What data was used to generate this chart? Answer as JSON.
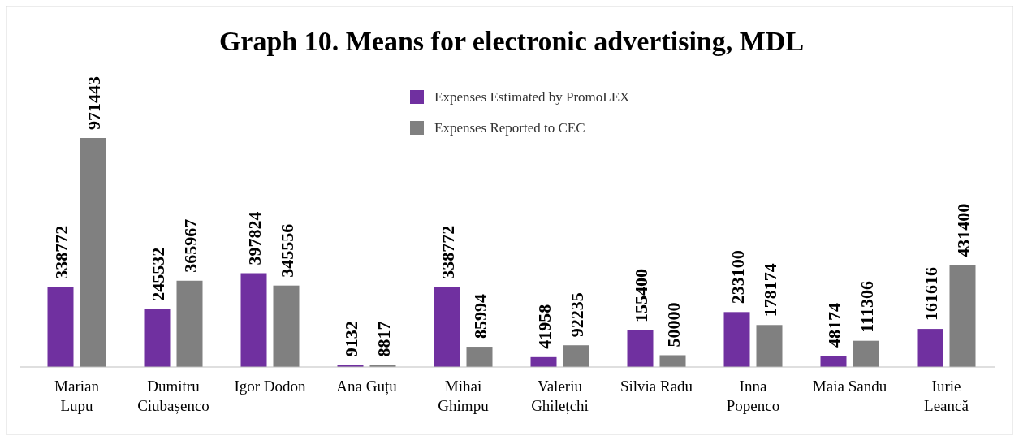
{
  "chart_data": {
    "type": "bar",
    "title": "Graph 10. Means for electronic advertising, MDL",
    "categories": [
      "Marian Lupu",
      "Dumitru Ciubașenco",
      "Igor Dodon",
      "Ana Guțu",
      "Mihai Ghimpu",
      "Valeriu Ghilețchi",
      "Silvia Radu",
      "Inna Popenco",
      "Maia Sandu",
      "Iurie Leancă"
    ],
    "series": [
      {
        "name": "Expenses Estimated by PromoLEX",
        "color": "#7030a0",
        "values": [
          338772,
          245532,
          397824,
          9132,
          338772,
          41958,
          155400,
          233100,
          48174,
          161616
        ]
      },
      {
        "name": "Expenses Reported to CEC",
        "color": "#808080",
        "values": [
          971443,
          365967,
          345556,
          8817,
          85994,
          92235,
          50000,
          178174,
          111306,
          431400
        ]
      }
    ],
    "data_labels": true,
    "legend": "top",
    "grid": false
  }
}
